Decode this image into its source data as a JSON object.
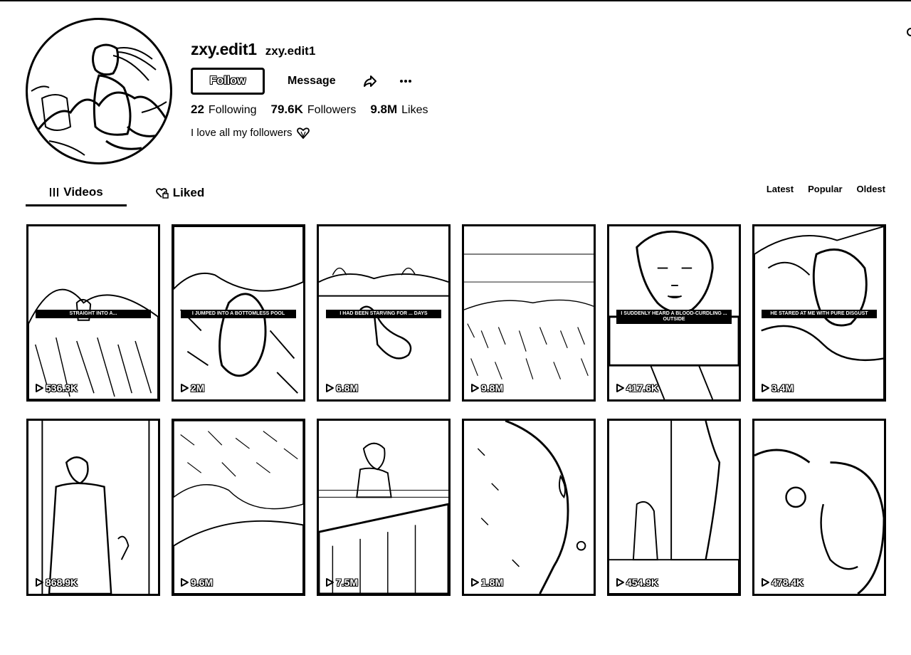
{
  "profile": {
    "username": "zxy.edit1",
    "nickname": "zxy.edit1",
    "bio": "I love all my followers",
    "bio_emoji_icon": "heart-icon",
    "stats": {
      "following_count": "22",
      "following_label": "Following",
      "followers_count": "79.6K",
      "followers_label": "Followers",
      "likes_count": "9.8M",
      "likes_label": "Likes"
    }
  },
  "actions": {
    "follow_label": "Follow",
    "message_label": "Message",
    "share_icon": "share-icon",
    "more_icon": "more-icon"
  },
  "tabs": [
    {
      "label": "Videos",
      "icon": "grid-icon",
      "active": true
    },
    {
      "label": "Liked",
      "icon": "heart-lock-icon",
      "active": false
    }
  ],
  "sort_options": [
    "Latest",
    "Popular",
    "Oldest"
  ],
  "videos": [
    {
      "views": "536.3K",
      "caption": "STRAIGHT INTO A..."
    },
    {
      "views": "2M",
      "caption": "I JUMPED INTO A BOTTOMLESS POOL"
    },
    {
      "views": "6.8M",
      "caption": "I HAD BEEN STARVING FOR ... DAYS"
    },
    {
      "views": "9.8M",
      "caption": ""
    },
    {
      "views": "417.6K",
      "caption": "I SUDDENLY HEARD A BLOOD-CURDLING ... OUTSIDE"
    },
    {
      "views": "3.4M",
      "caption": "HE STARED AT ME WITH PURE DISGUST"
    },
    {
      "views": "868.9K",
      "caption": ""
    },
    {
      "views": "9.6M",
      "caption": ""
    },
    {
      "views": "7.5M",
      "caption": ""
    },
    {
      "views": "1.8M",
      "caption": ""
    },
    {
      "views": "454.9K",
      "caption": ""
    },
    {
      "views": "478.4K",
      "caption": ""
    }
  ],
  "colors": {
    "ink": "#000000",
    "paper": "#ffffff"
  }
}
